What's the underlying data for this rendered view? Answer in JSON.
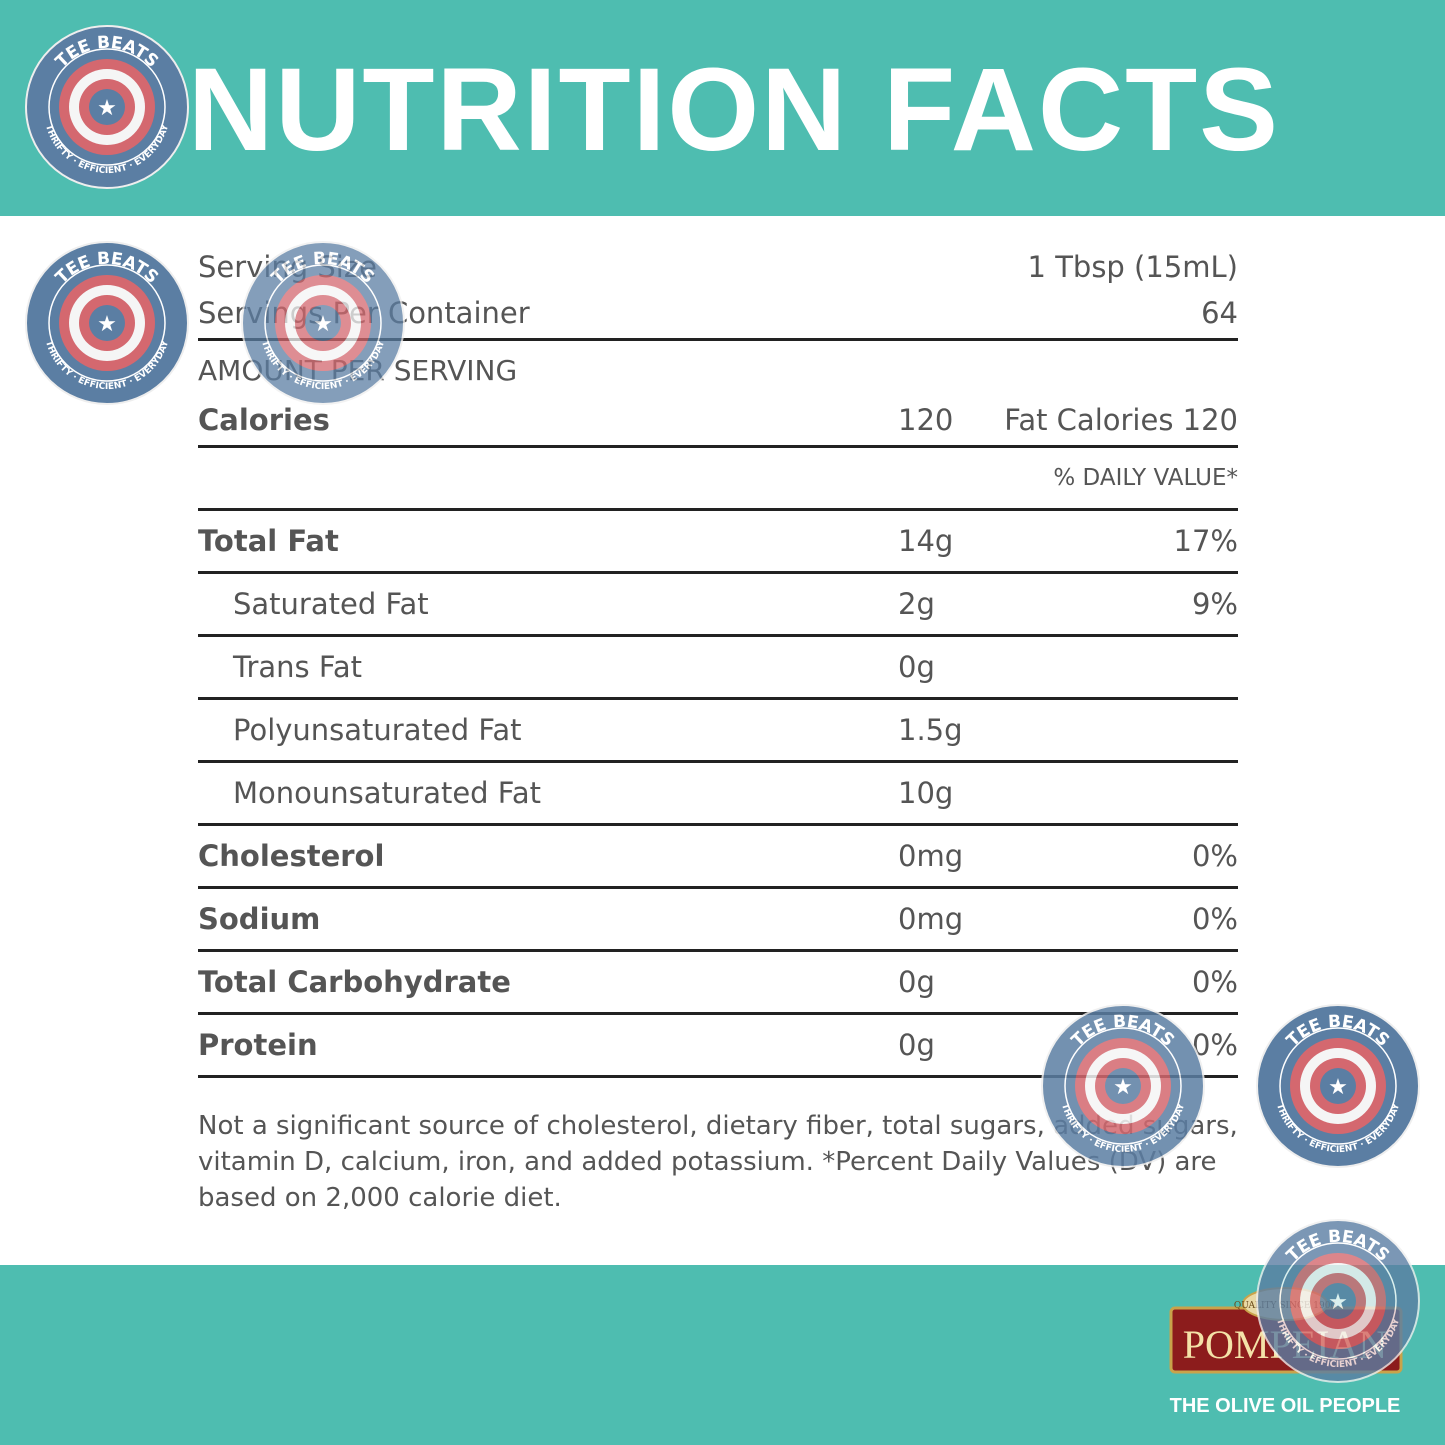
{
  "header": {
    "title": "NUTRITION FACTS"
  },
  "serving": {
    "size_label": "Serving Size",
    "size_value": "1 Tbsp (15mL)",
    "per_container_label": "Servings Per Container",
    "per_container_value": "64"
  },
  "amount_per_serving_label": "AMOUNT PER SERVING",
  "calories": {
    "label": "Calories",
    "value": "120",
    "fat_calories": "Fat Calories 120"
  },
  "daily_value_header": "% DAILY VALUE*",
  "nutrients": [
    {
      "label": "Total Fat",
      "amount": "14g",
      "dv": "17%",
      "bold": true,
      "indent": false
    },
    {
      "label": "Saturated Fat",
      "amount": "2g",
      "dv": "9%",
      "bold": false,
      "indent": true
    },
    {
      "label": "Trans Fat",
      "amount": "0g",
      "dv": "",
      "bold": false,
      "indent": true
    },
    {
      "label": "Polyunsaturated Fat",
      "amount": "1.5g",
      "dv": "",
      "bold": false,
      "indent": true
    },
    {
      "label": "Monounsaturated Fat",
      "amount": "10g",
      "dv": "",
      "bold": false,
      "indent": true
    },
    {
      "label": "Cholesterol",
      "amount": "0mg",
      "dv": "0%",
      "bold": true,
      "indent": false
    },
    {
      "label": "Sodium",
      "amount": "0mg",
      "dv": "0%",
      "bold": true,
      "indent": false
    },
    {
      "label": "Total Carbohydrate",
      "amount": "0g",
      "dv": "0%",
      "bold": true,
      "indent": false
    },
    {
      "label": "Protein",
      "amount": "0g",
      "dv": "0%",
      "bold": true,
      "indent": false
    }
  ],
  "footnote": "Not a significant source of cholesterol, dietary fiber, total sugars, added sugars, vitamin D, calcium, iron, and added potassium. *Percent Daily Values (DV) are based on 2,000 calorie diet.",
  "watermark": {
    "top_text": "TEE BEATS",
    "bottom_text": "THRIFTY · EFFICIENT · EVERYDAY"
  },
  "brand": {
    "name": "POMPEIAN",
    "seal_text": "QUALITY SINCE 1906",
    "tagline": "THE OLIVE OIL PEOPLE"
  },
  "colors": {
    "teal": "#4ebdb0",
    "rule": "#222222",
    "text": "#555555",
    "badge_blue": "#5b7ea3",
    "badge_red": "#d4686f",
    "brand_red": "#8c1c1c",
    "brand_gold": "#c9a34a"
  },
  "icons": [
    "tee-beats-badge-icon",
    "pompeian-logo-icon"
  ]
}
